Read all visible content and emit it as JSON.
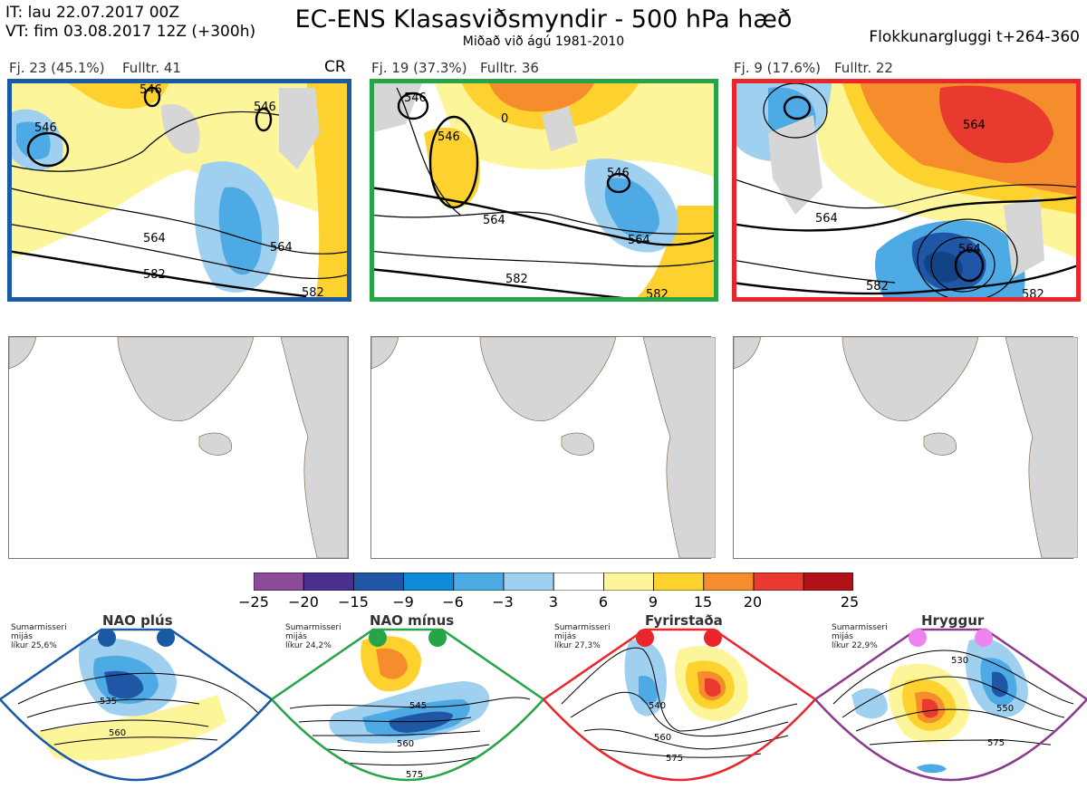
{
  "header": {
    "it_line": "IT: lau 22.07.2017 00Z",
    "vt_line": "VT: fim 03.08.2017 12Z  (+300h)",
    "title": "EC-ENS Klasasviðsmyndir - 500 hPa hæð",
    "subtitle": "Miðað við ágú 1981-2010",
    "window": "Flokkunargluggi t+264-360"
  },
  "clusters": [
    {
      "label": "Fj. 23 (45.1%)",
      "fulltr": "Fulltr. 41",
      "tag": "CR",
      "frame_color": "#1a5aa5",
      "contours": [
        "546",
        "546",
        "546",
        "564",
        "564",
        "582",
        "582"
      ]
    },
    {
      "label": "Fj. 19 (37.3%)",
      "fulltr": "Fulltr. 36",
      "tag": "",
      "frame_color": "#27a348",
      "contours": [
        "546",
        "546",
        "0",
        "546",
        "564",
        "564",
        "582",
        "582"
      ]
    },
    {
      "label": "Fj. 9 (17.6%)",
      "fulltr": "Fulltr. 22",
      "tag": "",
      "frame_color": "#e8262b",
      "contours": [
        "564",
        "564",
        "564",
        "582",
        "582"
      ]
    }
  ],
  "colorbar": {
    "ticks": [
      "−25",
      "−20",
      "−15",
      "−9",
      "−6",
      "−3",
      "3",
      "6",
      "9",
      "15",
      "20",
      "25"
    ],
    "colors": [
      "#8c4a9a",
      "#4a2f90",
      "#1f56a5",
      "#0f8ad8",
      "#4eaae5",
      "#9fd0ef",
      "#ffffff",
      "#fdf59a",
      "#fdd22e",
      "#f58d2d",
      "#e83a2e",
      "#b01218"
    ]
  },
  "regimes": [
    {
      "name": "NAO plús",
      "note1": "Sumarmisseri",
      "note2": "mijás",
      "note3": "líkur 25,6%",
      "dot_color": "#1a5aa5",
      "frame_color": "#1a5aa5",
      "contours": [
        "535",
        "560"
      ]
    },
    {
      "name": "NAO mínus",
      "note1": "Sumarmisseri",
      "note2": "mijás",
      "note3": "líkur 24,2%",
      "dot_color": "#27a348",
      "frame_color": "#27a348",
      "contours": [
        "545",
        "560",
        "575"
      ]
    },
    {
      "name": "Fyrirstaða",
      "note1": "Sumarmisseri",
      "note2": "mijás",
      "note3": "líkur 27,3%",
      "dot_color": "#e8262b",
      "frame_color": "#e8262b",
      "contours": [
        "540",
        "560",
        "575"
      ]
    },
    {
      "name": "Hryggur",
      "note1": "Sumarmisseri",
      "note2": "mijás",
      "note3": "líkur 22,9%",
      "dot_color": "#ee82ee",
      "frame_color": "#8c3a8c",
      "contours": [
        "530",
        "550",
        "575"
      ]
    }
  ]
}
